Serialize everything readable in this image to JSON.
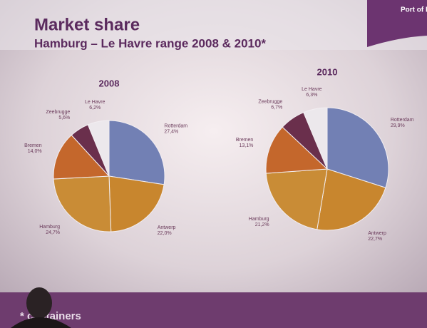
{
  "slide": {
    "title": "Market share",
    "subtitle": "Hamburg – Le Havre range 2008 & 2010*",
    "footnote": "* containers",
    "logo": "Port of Rotterdam"
  },
  "chart_data": [
    {
      "type": "pie",
      "title": "2008",
      "categories": [
        "Rotterdam",
        "Antwerp",
        "Hamburg",
        "Bremen",
        "Zeebrugge",
        "Le Havre"
      ],
      "values": [
        27.4,
        22.0,
        24.7,
        14.0,
        5.6,
        6.2
      ],
      "value_labels": [
        "27,4%",
        "22,0%",
        "24,7%",
        "14,0%",
        "5,6%",
        "6,2%"
      ],
      "colors": [
        "#7280b4",
        "#c8862e",
        "#c98c36",
        "#c4672c",
        "#6a2f4c",
        "#ece8ec"
      ]
    },
    {
      "type": "pie",
      "title": "2010",
      "categories": [
        "Rotterdam",
        "Antwerp",
        "Hamburg",
        "Bremen",
        "Zeebrugge",
        "Le Havre"
      ],
      "values": [
        29.9,
        22.7,
        21.2,
        13.1,
        6.7,
        6.3
      ],
      "value_labels": [
        "29,9%",
        "22,7%",
        "21,2%",
        "13,1%",
        "6,7%",
        "6,3%"
      ],
      "colors": [
        "#7280b4",
        "#c8862e",
        "#c98c36",
        "#c4672c",
        "#6a2f4c",
        "#ece8ec"
      ]
    }
  ]
}
